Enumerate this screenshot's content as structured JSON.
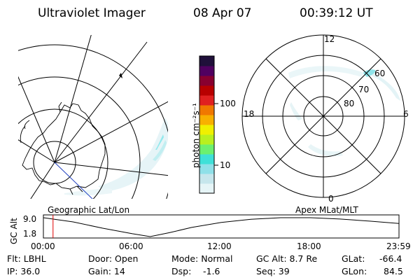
{
  "header": {
    "title": "Ultraviolet Imager",
    "date": "08 Apr 07",
    "time": "00:39:12 UT"
  },
  "colorbar": {
    "unit_label": "photon cm⁻²s⁻¹",
    "ticks": [
      "100",
      "10"
    ],
    "colors": [
      "#e6f5f7",
      "#c6e6ec",
      "#8fe0e8",
      "#3fe0d8",
      "#6cf070",
      "#b8f020",
      "#f0f000",
      "#f8b000",
      "#f07800",
      "#e02020",
      "#b80000",
      "#880030",
      "#500060",
      "#20103a"
    ]
  },
  "left_map": {
    "caption": "Geographic Lat/Lon",
    "icon": "geographic-map-icon"
  },
  "right_polar": {
    "caption": "Apex MLat/MLT",
    "mlt_labels": {
      "top": "12",
      "left": "18",
      "right": "6",
      "bottom": "0"
    },
    "lat_labels": [
      "60",
      "70",
      "80"
    ]
  },
  "altitude_plot": {
    "ylabel": "GC Alt",
    "yticks": [
      "9.0",
      "1.8"
    ],
    "xticks": [
      "00:00",
      "06:00",
      "12:00",
      "18:00",
      "23:59"
    ],
    "marker_color": "#e00000",
    "marker_time_hours": 0.65,
    "curve": [
      {
        "t": 0.0,
        "alt": 9.0
      },
      {
        "t": 2.0,
        "alt": 7.4
      },
      {
        "t": 4.0,
        "alt": 5.0
      },
      {
        "t": 6.0,
        "alt": 2.9
      },
      {
        "t": 7.2,
        "alt": 1.8
      },
      {
        "t": 8.5,
        "alt": 3.3
      },
      {
        "t": 10.0,
        "alt": 5.3
      },
      {
        "t": 12.0,
        "alt": 7.2
      },
      {
        "t": 14.0,
        "alt": 8.4
      },
      {
        "t": 16.0,
        "alt": 9.0
      },
      {
        "t": 18.0,
        "alt": 9.0
      },
      {
        "t": 20.0,
        "alt": 8.5
      },
      {
        "t": 22.0,
        "alt": 7.7
      },
      {
        "t": 23.98,
        "alt": 6.8
      }
    ]
  },
  "info": {
    "flt": "Flt: LBHL",
    "ip": "IP: 36.0",
    "door": "Door: Open",
    "gain": "Gain: 14",
    "mode": "Mode: Normal",
    "dsp_label": "Dsp:",
    "dsp_value": "-1.6",
    "gcalt": "GC Alt: 8.7 Re",
    "seq": "Seq: 39",
    "glat_label": "GLat:",
    "glat_value": "-66.4",
    "glon_label": "GLon:",
    "glon_value": "84.5"
  }
}
